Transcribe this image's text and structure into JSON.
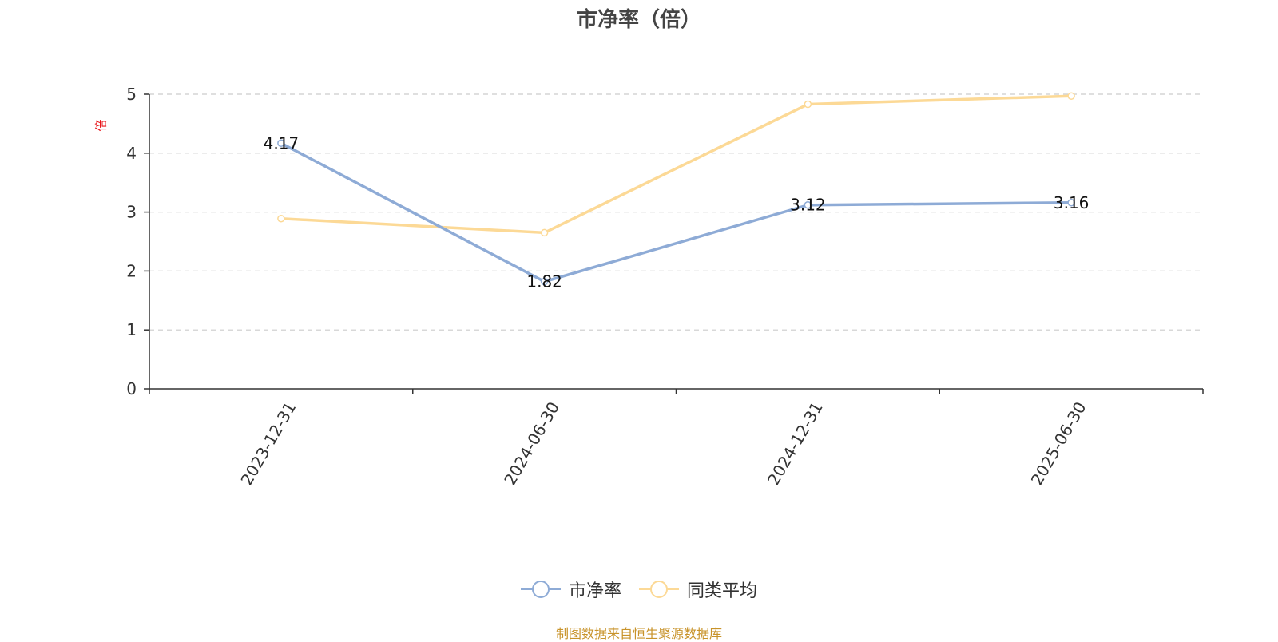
{
  "chart_data": {
    "type": "line",
    "title": "市净率（倍）",
    "ylabel": "倍",
    "categories": [
      "2023-12-31",
      "2024-06-30",
      "2024-12-31",
      "2025-06-30"
    ],
    "ylim": [
      0,
      5
    ],
    "yticks": [
      0,
      1,
      2,
      3,
      4,
      5
    ],
    "grid": true,
    "legend_position": "bottom-center",
    "series": [
      {
        "name": "市净率",
        "values": [
          4.17,
          1.82,
          3.12,
          3.16
        ],
        "color": "#8eabd6",
        "show_labels": true
      },
      {
        "name": "同类平均",
        "values": [
          2.89,
          2.65,
          4.83,
          4.97
        ],
        "color": "#fcd996",
        "show_labels": false
      }
    ]
  },
  "footer": {
    "source": "制图数据来自恒生聚源数据库"
  },
  "colors": {
    "axis": "#333333",
    "grid": "#cccccc",
    "ylabel": "#e8141a",
    "source": "#c8932a"
  }
}
